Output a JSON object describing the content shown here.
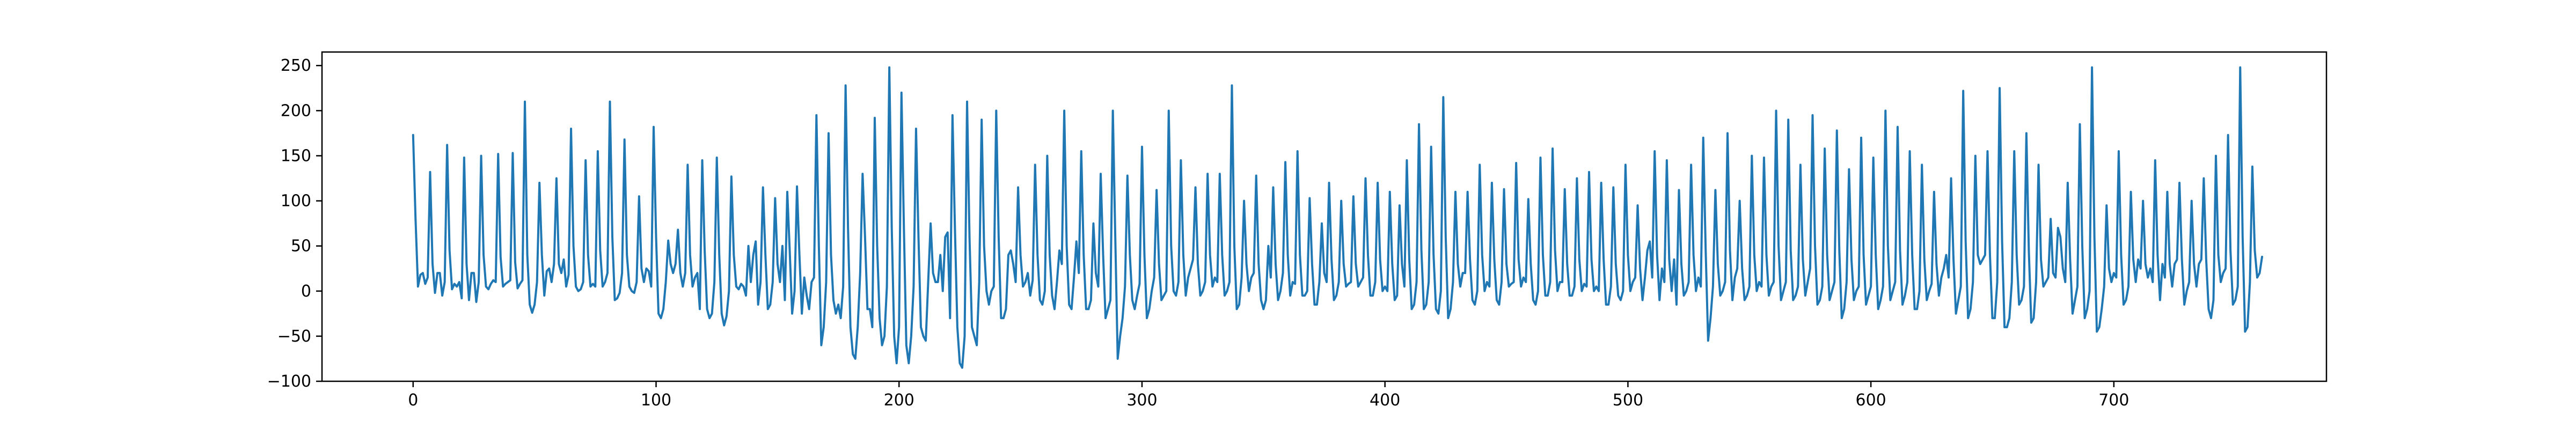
{
  "chart_data": {
    "type": "line",
    "title": "",
    "xlabel": "",
    "ylabel": "",
    "xlim": [
      -37.5,
      787.5
    ],
    "ylim": [
      -100,
      265
    ],
    "x_ticks": [
      0,
      100,
      200,
      300,
      400,
      500,
      600,
      700
    ],
    "y_ticks": [
      -100,
      -50,
      0,
      50,
      100,
      150,
      200,
      250
    ],
    "x_tick_labels": [
      "0",
      "100",
      "200",
      "300",
      "400",
      "500",
      "600",
      "700"
    ],
    "y_tick_labels": [
      "−100",
      "−50",
      "0",
      "50",
      "100",
      "150",
      "200",
      "250"
    ],
    "grid": false,
    "legend": "none",
    "colors": {
      "series": "#1f77b4",
      "axes": "#000000",
      "background": "#ffffff"
    },
    "series": [
      {
        "x_start": 0,
        "x_step": 1,
        "values": [
          173,
          80,
          5,
          18,
          20,
          8,
          15,
          132,
          30,
          -2,
          20,
          20,
          -5,
          10,
          162,
          45,
          2,
          8,
          5,
          10,
          -8,
          148,
          30,
          -10,
          20,
          20,
          -12,
          10,
          150,
          40,
          5,
          2,
          8,
          12,
          10,
          152,
          38,
          5,
          8,
          10,
          12,
          153,
          32,
          3,
          8,
          12,
          210,
          40,
          -15,
          -24,
          -15,
          10,
          120,
          40,
          -5,
          22,
          25,
          10,
          30,
          125,
          30,
          20,
          35,
          5,
          18,
          180,
          50,
          5,
          0,
          2,
          10,
          145,
          40,
          5,
          8,
          5,
          155,
          45,
          5,
          10,
          20,
          210,
          60,
          -10,
          -8,
          -2,
          20,
          168,
          40,
          5,
          0,
          -2,
          10,
          105,
          25,
          10,
          25,
          22,
          5,
          182,
          60,
          -25,
          -30,
          -20,
          10,
          56,
          30,
          20,
          30,
          68,
          20,
          5,
          20,
          140,
          40,
          5,
          15,
          20,
          -20,
          145,
          45,
          -20,
          -30,
          -25,
          10,
          148,
          40,
          -25,
          -38,
          -28,
          0,
          127,
          40,
          5,
          2,
          8,
          5,
          -5,
          50,
          10,
          40,
          55,
          -15,
          10,
          115,
          40,
          -20,
          -15,
          10,
          103,
          30,
          10,
          50,
          -10,
          110,
          45,
          -25,
          0,
          116,
          40,
          -25,
          15,
          -5,
          -20,
          10,
          15,
          195,
          50,
          -60,
          -40,
          10,
          175,
          40,
          -10,
          -25,
          -15,
          -30,
          5,
          228,
          70,
          -40,
          -70,
          -75,
          -40,
          20,
          130,
          60,
          -20,
          -20,
          -40,
          192,
          50,
          -30,
          -60,
          -50,
          5,
          248,
          70,
          -50,
          -80,
          -40,
          220,
          70,
          -60,
          -80,
          -50,
          5,
          180,
          60,
          -40,
          -50,
          -55,
          10,
          75,
          20,
          10,
          10,
          40,
          0,
          60,
          65,
          -30,
          195,
          70,
          -40,
          -80,
          -85,
          -50,
          210,
          60,
          -40,
          -50,
          -60,
          10,
          190,
          50,
          0,
          -15,
          0,
          5,
          200,
          60,
          -30,
          -30,
          -20,
          40,
          45,
          30,
          10,
          115,
          40,
          5,
          10,
          20,
          -5,
          12,
          140,
          40,
          -10,
          -15,
          0,
          150,
          40,
          -5,
          -20,
          10,
          45,
          30,
          200,
          50,
          -15,
          -20,
          15,
          55,
          20,
          155,
          40,
          -20,
          -20,
          -10,
          75,
          20,
          5,
          130,
          40,
          -30,
          -20,
          -10,
          200,
          60,
          -75,
          -50,
          -30,
          5,
          128,
          40,
          -10,
          -20,
          -5,
          8,
          160,
          40,
          -30,
          -20,
          0,
          15,
          112,
          30,
          -10,
          -5,
          0,
          200,
          50,
          0,
          -5,
          10,
          145,
          40,
          -5,
          15,
          25,
          35,
          115,
          30,
          -5,
          0,
          10,
          130,
          40,
          5,
          15,
          10,
          130,
          40,
          -5,
          0,
          10,
          228,
          50,
          -20,
          -15,
          15,
          100,
          30,
          0,
          15,
          20,
          128,
          30,
          -10,
          -20,
          -10,
          50,
          15,
          115,
          30,
          -10,
          0,
          20,
          143,
          40,
          -5,
          10,
          8,
          155,
          40,
          -5,
          -5,
          0,
          103,
          30,
          -15,
          -15,
          10,
          75,
          20,
          10,
          120,
          35,
          -10,
          -5,
          10,
          100,
          30,
          5,
          8,
          10,
          105,
          30,
          5,
          10,
          15,
          125,
          40,
          -5,
          -5,
          10,
          120,
          35,
          0,
          5,
          0,
          110,
          30,
          -10,
          -5,
          95,
          30,
          5,
          145,
          35,
          -20,
          -15,
          10,
          185,
          45,
          -20,
          -15,
          10,
          160,
          40,
          -20,
          -25,
          0,
          215,
          60,
          -30,
          -20,
          10,
          110,
          30,
          5,
          20,
          20,
          110,
          35,
          -10,
          -15,
          0,
          140,
          40,
          0,
          10,
          5,
          120,
          35,
          -10,
          -15,
          10,
          113,
          30,
          5,
          8,
          10,
          142,
          35,
          5,
          15,
          10,
          102,
          30,
          -10,
          -15,
          0,
          148,
          40,
          -5,
          -5,
          10,
          158,
          45,
          0,
          10,
          10,
          113,
          30,
          -5,
          -5,
          5,
          125,
          35,
          0,
          8,
          5,
          132,
          35,
          0,
          5,
          0,
          120,
          35,
          -15,
          -15,
          5,
          115,
          30,
          -5,
          -10,
          0,
          140,
          40,
          0,
          10,
          15,
          95,
          25,
          -10,
          15,
          45,
          55,
          15,
          155,
          40,
          -10,
          25,
          10,
          145,
          35,
          0,
          35,
          -15,
          112,
          30,
          -5,
          0,
          10,
          140,
          40,
          0,
          15,
          5,
          170,
          45,
          -55,
          -30,
          5,
          112,
          30,
          -5,
          0,
          10,
          175,
          45,
          -10,
          15,
          25,
          100,
          25,
          -10,
          -5,
          5,
          150,
          40,
          0,
          10,
          5,
          148,
          40,
          -5,
          5,
          10,
          200,
          50,
          -10,
          0,
          10,
          190,
          45,
          -10,
          -5,
          5,
          140,
          35,
          -5,
          10,
          25,
          195,
          50,
          -15,
          -10,
          5,
          158,
          40,
          -10,
          0,
          10,
          178,
          45,
          -30,
          -20,
          10,
          135,
          35,
          -10,
          0,
          5,
          170,
          40,
          -15,
          -5,
          5,
          148,
          40,
          -20,
          -10,
          5,
          200,
          50,
          -10,
          0,
          10,
          182,
          45,
          -15,
          -5,
          10,
          155,
          40,
          -20,
          -20,
          0,
          140,
          35,
          -10,
          0,
          8,
          110,
          30,
          -5,
          15,
          25,
          40,
          15,
          125,
          35,
          -25,
          -10,
          5,
          222,
          55,
          -30,
          -20,
          10,
          150,
          40,
          30,
          35,
          40,
          155,
          40,
          -30,
          -30,
          10,
          225,
          55,
          -40,
          -40,
          -30,
          10,
          155,
          40,
          -15,
          -10,
          5,
          175,
          45,
          -35,
          -30,
          10,
          140,
          35,
          5,
          10,
          15,
          80,
          20,
          15,
          70,
          60,
          25,
          10,
          120,
          35,
          -25,
          -10,
          5,
          185,
          50,
          -30,
          -20,
          0,
          248,
          60,
          -45,
          -40,
          -20,
          5,
          95,
          25,
          10,
          20,
          15,
          155,
          40,
          -15,
          -10,
          5,
          110,
          35,
          10,
          35,
          25,
          100,
          30,
          15,
          25,
          10,
          145,
          40,
          -10,
          30,
          15,
          110,
          30,
          5,
          30,
          35,
          120,
          35,
          -15,
          0,
          10,
          100,
          30,
          5,
          30,
          35,
          125,
          35,
          -20,
          -30,
          -10,
          150,
          40,
          10,
          20,
          25,
          173,
          45,
          -15,
          -10,
          5,
          248,
          60,
          -45,
          -40,
          10,
          138,
          45,
          15,
          20,
          38
        ]
      }
    ]
  }
}
